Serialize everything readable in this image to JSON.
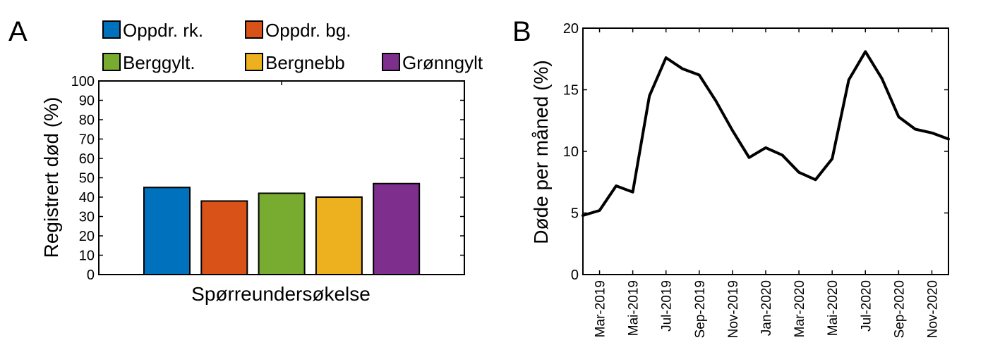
{
  "chart_data": [
    {
      "panel": "A",
      "type": "bar",
      "xlabel": "Spørreundersøkelse",
      "ylabel": "Registrert død (%)",
      "ylim": [
        0,
        100
      ],
      "yticks": [
        0,
        10,
        20,
        30,
        40,
        50,
        60,
        70,
        80,
        90,
        100
      ],
      "legend": "top",
      "series": [
        {
          "name": "Oppdr. rk.",
          "value": 45,
          "color": "#0072BD"
        },
        {
          "name": "Oppdr. bg.",
          "value": 38,
          "color": "#D95319"
        },
        {
          "name": "Berggylt.",
          "value": 42,
          "color": "#77AC30"
        },
        {
          "name": "Bergnebb",
          "value": 40,
          "color": "#EDB120"
        },
        {
          "name": "Grønngylt",
          "value": 47,
          "color": "#7E2F8E"
        }
      ]
    },
    {
      "panel": "B",
      "type": "line",
      "ylabel": "Døde per måned (%)",
      "ylim": [
        0,
        20
      ],
      "yticks": [
        0,
        5,
        10,
        15,
        20
      ],
      "x_start": "Feb-2019",
      "x": [
        "Feb-2019",
        "Mar-2019",
        "Apr-2019",
        "Mai-2019",
        "Jun-2019",
        "Jul-2019",
        "Aug-2019",
        "Sep-2019",
        "Okt-2019",
        "Nov-2019",
        "Des-2019",
        "Jan-2020",
        "Feb-2020",
        "Mar-2020",
        "Apr-2020",
        "Mai-2020",
        "Jun-2020",
        "Jul-2020",
        "Aug-2020",
        "Sep-2020",
        "Okt-2020",
        "Nov-2020",
        "Des-2020"
      ],
      "y": [
        4.8,
        5.2,
        7.2,
        6.7,
        14.5,
        17.6,
        16.7,
        16.2,
        14.1,
        11.7,
        9.5,
        10.3,
        9.7,
        8.3,
        7.7,
        9.4,
        15.8,
        18.1,
        15.9,
        12.8,
        11.8,
        11.5,
        11.0
      ],
      "xticks": [
        "Mar-2019",
        "Mai-2019",
        "Jul-2019",
        "Sep-2019",
        "Nov-2019",
        "Jan-2020",
        "Mar-2020",
        "Mai-2020",
        "Jul-2020",
        "Sep-2020",
        "Nov-2020"
      ],
      "line_color": "#000000"
    }
  ],
  "panels": {
    "a": "A",
    "b": "B"
  }
}
